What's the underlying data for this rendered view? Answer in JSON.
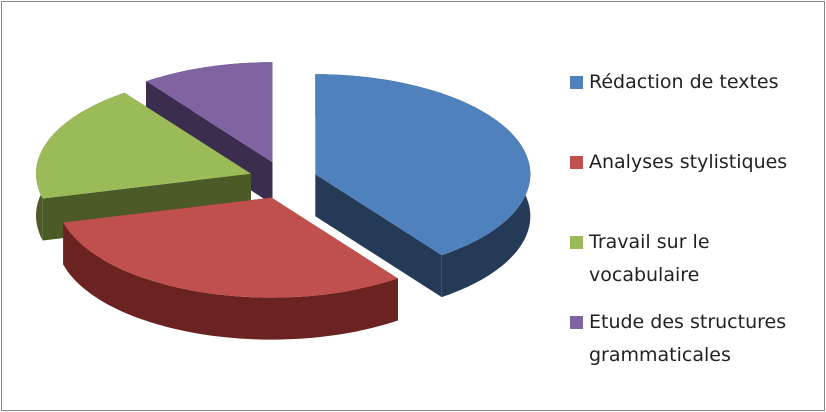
{
  "chart_data": {
    "type": "pie3d",
    "categories": [
      "Rédaction de textes",
      "Analyses stylistiques",
      "Travail sur le vocabulaire",
      "Etude des structures grammaticales"
    ],
    "values": [
      40,
      31,
      19,
      10
    ],
    "colors": [
      "#4f81bd",
      "#c0504d",
      "#9bbb59",
      "#8064a2"
    ],
    "side_colors": [
      "#243a57",
      "#6b2321",
      "#4b5a26",
      "#3b2d4d"
    ],
    "legend": "right"
  }
}
